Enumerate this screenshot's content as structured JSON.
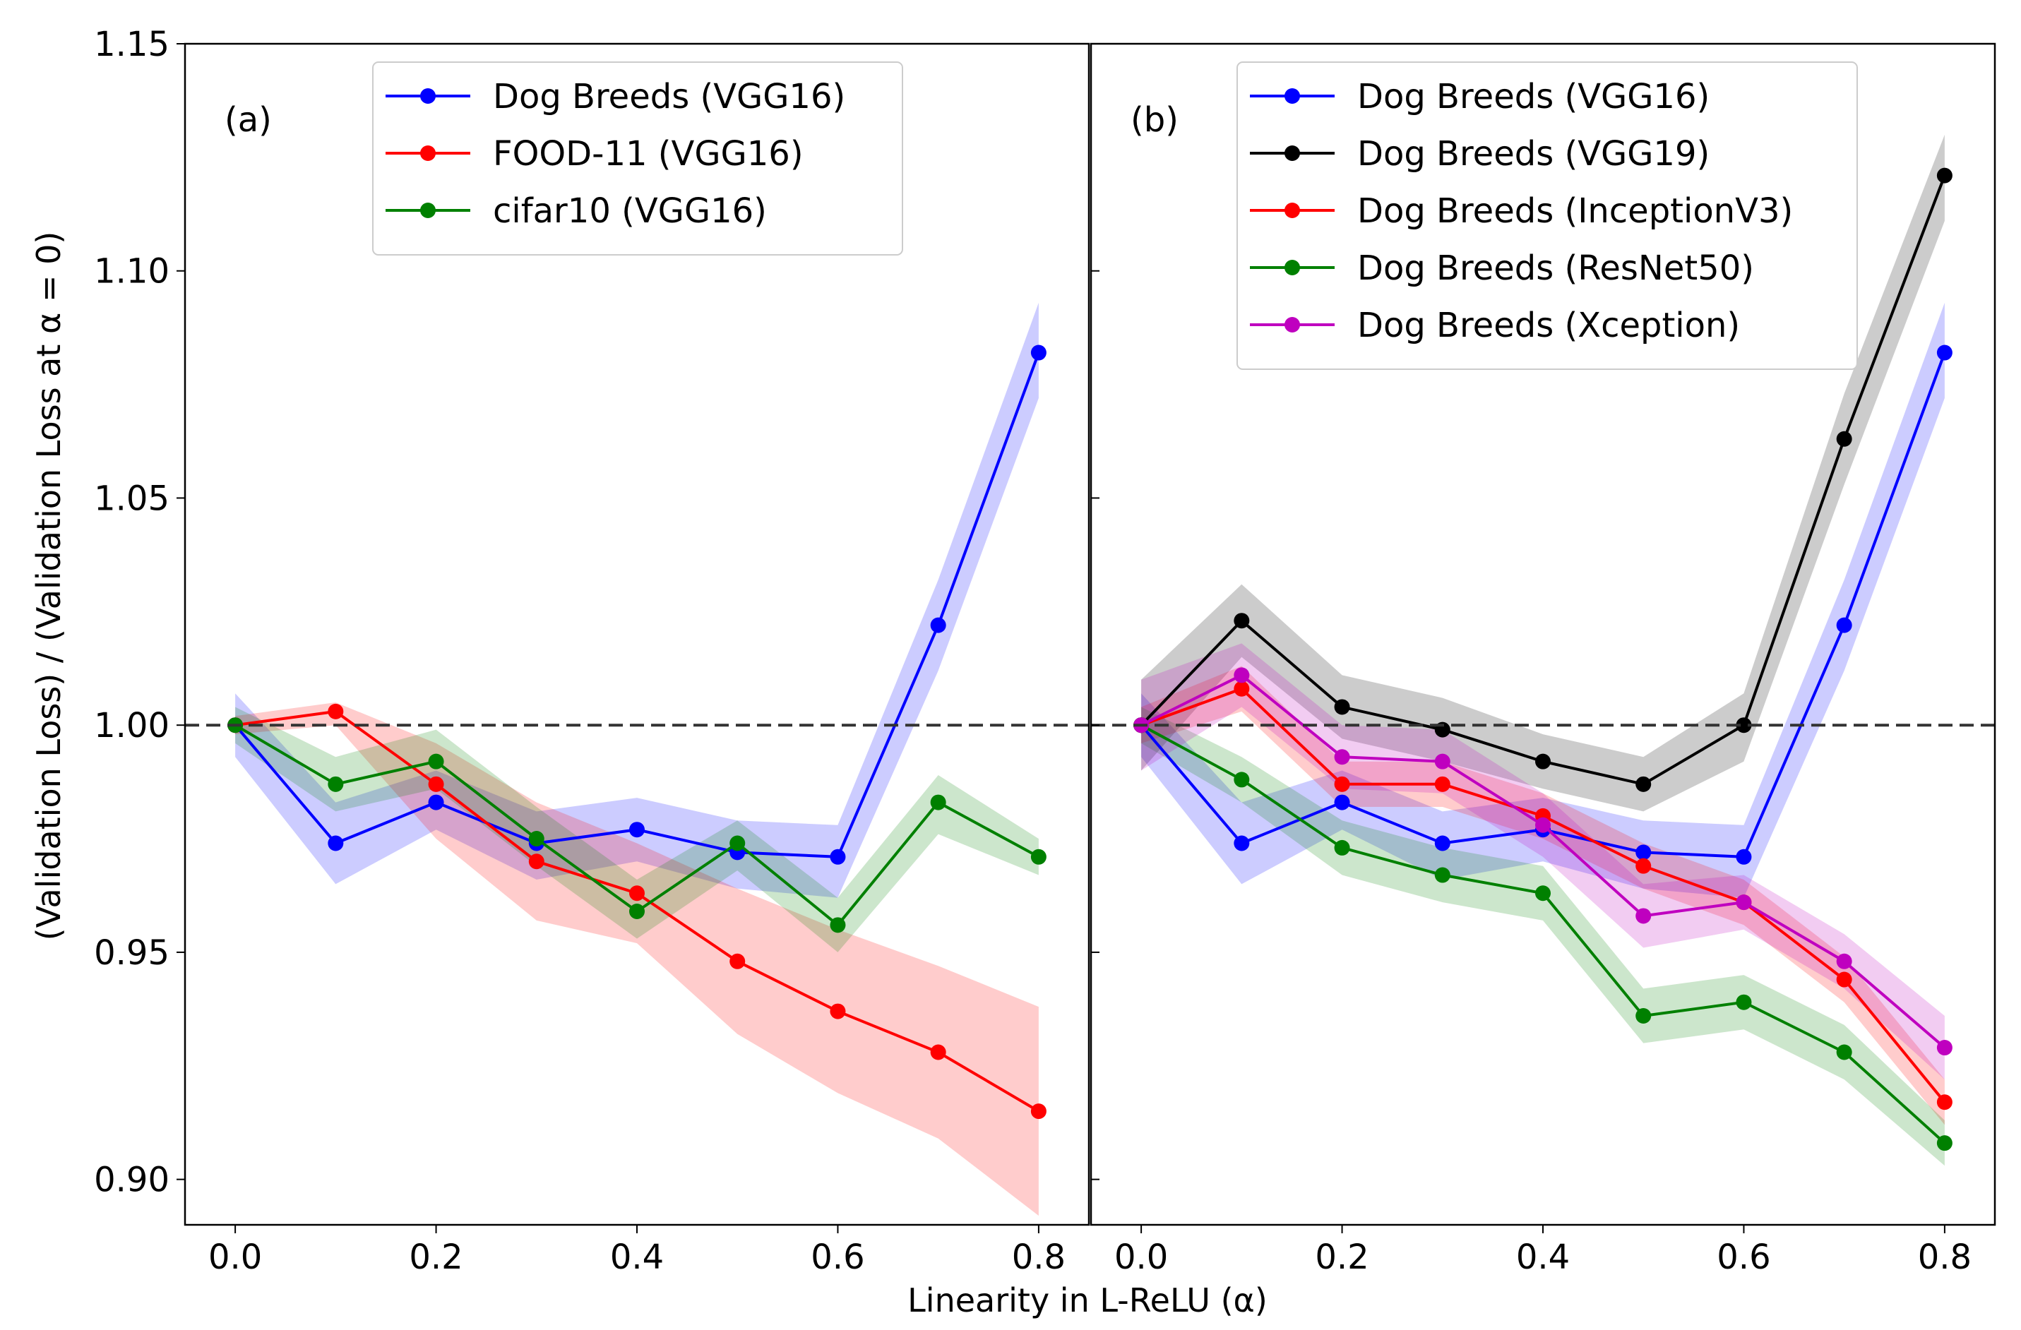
{
  "figure": {
    "xlabel": "Linearity in L-ReLU (α)",
    "ylabel": "(Validation Loss) / (Validation Loss at α = 0)"
  },
  "chart_data": [
    {
      "type": "line",
      "panel_label": "(a)",
      "xlabel": "Linearity in L-ReLU (α)",
      "ylabel": "(Validation Loss) / (Validation Loss at α = 0)",
      "xlim": [
        -0.05,
        0.85
      ],
      "ylim": [
        0.89,
        1.15
      ],
      "xticks": [
        0.0,
        0.2,
        0.4,
        0.6,
        0.8
      ],
      "xtick_labels": [
        "0.0",
        "0.2",
        "0.4",
        "0.6",
        "0.8"
      ],
      "yticks": [
        0.9,
        0.95,
        1.0,
        1.05,
        1.1,
        1.15
      ],
      "ytick_labels": [
        "0.90",
        "0.95",
        "1.00",
        "1.05",
        "1.10",
        "1.15"
      ],
      "reference_line": 1.0,
      "legend_position": "top-center",
      "x": [
        0.0,
        0.1,
        0.2,
        0.3,
        0.4,
        0.5,
        0.6,
        0.7,
        0.8
      ],
      "series": [
        {
          "name": "Dog Breeds (VGG16)",
          "color": "#0000ff",
          "values": [
            1.0,
            0.974,
            0.983,
            0.974,
            0.977,
            0.972,
            0.971,
            1.022,
            1.082
          ],
          "lower": [
            0.993,
            0.965,
            0.977,
            0.966,
            0.97,
            0.964,
            0.962,
            1.012,
            1.072
          ],
          "upper": [
            1.007,
            0.983,
            0.99,
            0.981,
            0.984,
            0.979,
            0.978,
            1.032,
            1.093
          ]
        },
        {
          "name": "FOOD-11 (VGG16)",
          "color": "#ff0000",
          "values": [
            1.0,
            1.003,
            0.987,
            0.97,
            0.963,
            0.948,
            0.937,
            0.928,
            0.915
          ],
          "lower": [
            0.998,
            1.0,
            0.975,
            0.957,
            0.952,
            0.932,
            0.919,
            0.909,
            0.892
          ],
          "upper": [
            1.002,
            1.005,
            0.996,
            0.983,
            0.974,
            0.964,
            0.955,
            0.947,
            0.938
          ]
        },
        {
          "name": "cifar10 (VGG16)",
          "color": "#008000",
          "values": [
            1.0,
            0.987,
            0.992,
            0.975,
            0.959,
            0.974,
            0.956,
            0.983,
            0.971
          ],
          "lower": [
            0.996,
            0.981,
            0.986,
            0.969,
            0.953,
            0.968,
            0.95,
            0.976,
            0.967
          ],
          "upper": [
            1.004,
            0.993,
            0.999,
            0.982,
            0.966,
            0.979,
            0.962,
            0.989,
            0.975
          ]
        }
      ]
    },
    {
      "type": "line",
      "panel_label": "(b)",
      "xlim": [
        -0.05,
        0.85
      ],
      "ylim": [
        0.89,
        1.15
      ],
      "xticks": [
        0.0,
        0.2,
        0.4,
        0.6,
        0.8
      ],
      "xtick_labels": [
        "0.0",
        "0.2",
        "0.4",
        "0.6",
        "0.8"
      ],
      "reference_line": 1.0,
      "legend_position": "top-right",
      "x": [
        0.0,
        0.1,
        0.2,
        0.3,
        0.4,
        0.5,
        0.6,
        0.7,
        0.8
      ],
      "series": [
        {
          "name": "Dog Breeds (VGG16)",
          "color": "#0000ff",
          "values": [
            1.0,
            0.974,
            0.983,
            0.974,
            0.977,
            0.972,
            0.971,
            1.022,
            1.082
          ],
          "lower": [
            0.993,
            0.965,
            0.977,
            0.966,
            0.97,
            0.964,
            0.962,
            1.012,
            1.072
          ],
          "upper": [
            1.007,
            0.983,
            0.99,
            0.981,
            0.984,
            0.979,
            0.978,
            1.032,
            1.093
          ]
        },
        {
          "name": "Dog Breeds (VGG19)",
          "color": "#000000",
          "values": [
            1.0,
            1.023,
            1.004,
            0.999,
            0.992,
            0.987,
            1.0,
            1.063,
            1.121
          ],
          "lower": [
            0.99,
            1.015,
            0.997,
            0.992,
            0.986,
            0.981,
            0.992,
            1.053,
            1.111
          ],
          "upper": [
            1.01,
            1.031,
            1.011,
            1.006,
            0.998,
            0.993,
            1.007,
            1.073,
            1.13
          ]
        },
        {
          "name": "Dog Breeds (InceptionV3)",
          "color": "#ff0000",
          "values": [
            1.0,
            1.008,
            0.987,
            0.987,
            0.98,
            0.969,
            0.961,
            0.944,
            0.917
          ],
          "lower": [
            0.996,
            1.003,
            0.982,
            0.982,
            0.975,
            0.964,
            0.956,
            0.939,
            0.912
          ],
          "upper": [
            1.004,
            1.013,
            0.992,
            0.992,
            0.985,
            0.974,
            0.966,
            0.949,
            0.922
          ]
        },
        {
          "name": "Dog Breeds (ResNet50)",
          "color": "#008000",
          "values": [
            1.0,
            0.988,
            0.973,
            0.967,
            0.963,
            0.936,
            0.939,
            0.928,
            0.908
          ],
          "lower": [
            0.996,
            0.983,
            0.967,
            0.961,
            0.957,
            0.93,
            0.933,
            0.922,
            0.903
          ],
          "upper": [
            1.004,
            0.993,
            0.979,
            0.973,
            0.969,
            0.942,
            0.945,
            0.934,
            0.913
          ]
        },
        {
          "name": "Dog Breeds (Xception)",
          "color": "#bf00bf",
          "values": [
            1.0,
            1.011,
            0.993,
            0.992,
            0.978,
            0.958,
            0.961,
            0.948,
            0.929
          ],
          "lower": [
            0.99,
            1.004,
            0.986,
            0.985,
            0.971,
            0.951,
            0.955,
            0.942,
            0.922
          ],
          "upper": [
            1.01,
            1.018,
            1.0,
            0.999,
            0.985,
            0.965,
            0.967,
            0.954,
            0.936
          ]
        }
      ]
    }
  ]
}
